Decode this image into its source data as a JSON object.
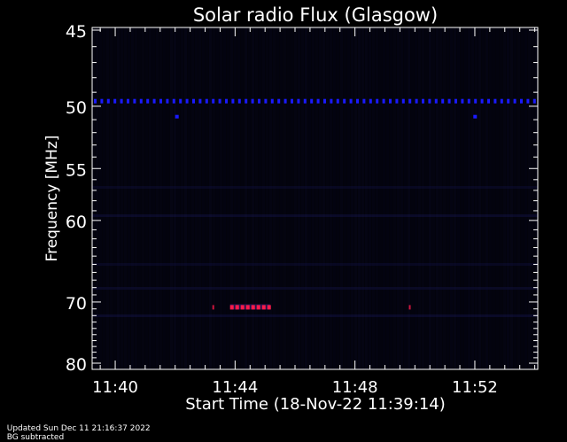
{
  "chart_data": {
    "type": "heatmap",
    "title": "Solar radio Flux (Glasgow)",
    "xlabel": "Start Time (18-Nov-22 11:39:14)",
    "ylabel": "Frequency [MHz]",
    "x_tick_labels": [
      "11:40",
      "11:44",
      "11:48",
      "11:52"
    ],
    "x_ticks_minutes": [
      40,
      44,
      48,
      52
    ],
    "xlim_minutes": [
      39.23,
      54.1
    ],
    "y_tick_labels": [
      "45",
      "50",
      "55",
      "60",
      "70",
      "80"
    ],
    "y_ticks": [
      45,
      50,
      55,
      60,
      70,
      80
    ],
    "ylim": [
      45,
      80
    ],
    "y_scale": "reciprocal",
    "background_color": "#03030c",
    "features": [
      {
        "name": "interference line",
        "freq_mhz": 49.6,
        "color": "#1a1aff"
      },
      {
        "name": "emission",
        "freq_mhz": 70.7,
        "start": "11:43:50",
        "end": "11:45:10",
        "color": "#ff1a4a"
      }
    ]
  },
  "footer": {
    "updated": "Updated Sun Dec 11 21:16:37 2022",
    "note": "BG subtracted"
  }
}
